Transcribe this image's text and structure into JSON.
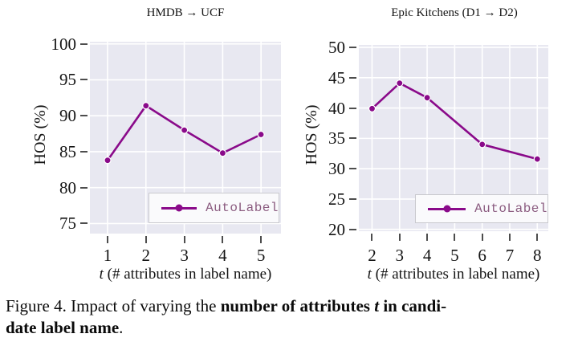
{
  "caption": {
    "line1_normal": "Figure 4. Impact of varying the ",
    "line1_bold": "number of attributes ",
    "line1_bold_italic_t": "t",
    "line1_bold_end": " in candi-",
    "line2_bold": "date label name",
    "line2_normal": "."
  },
  "colors": {
    "line": "#8a0a8a",
    "plot_bg": "#e8e8f1",
    "grid": "#ffffff",
    "marker_edge": "#ffffff",
    "legend_text": "#8b5c80",
    "legend_bg": "#fafafc",
    "legend_border": "#c9c9ce",
    "tick_mark": "#4d4d4d"
  },
  "chart_data": [
    {
      "type": "line",
      "title": "HMDB → UCF",
      "ylabel": "HOS (%)",
      "xlabel": "t (# attributes in label name)",
      "xlabel_t": "t",
      "xlabel_rest": " (# attributes in label name)",
      "legend_position": "lower right",
      "grid": true,
      "series": [
        {
          "name": "AutoLabel",
          "x": [
            1,
            2,
            3,
            4,
            5
          ],
          "y": [
            83.8,
            91.4,
            88.0,
            84.8,
            87.4
          ]
        }
      ],
      "xticks": [
        1,
        2,
        3,
        4,
        5
      ],
      "yticks": [
        75,
        80,
        85,
        90,
        95,
        100
      ],
      "xlim": [
        0.54,
        5.52
      ],
      "ylim": [
        73.6,
        100.3
      ]
    },
    {
      "type": "line",
      "title": "Epic Kitchens (D1 → D2)",
      "ylabel": "HOS (%)",
      "xlabel": "t (# attributes in label name)",
      "xlabel_t": "t",
      "xlabel_rest": " (# attributes in label name)",
      "legend_position": "lower right",
      "grid": true,
      "series": [
        {
          "name": "AutoLabel",
          "x": [
            2,
            3,
            4,
            6,
            8
          ],
          "y": [
            39.9,
            44.1,
            41.7,
            34.0,
            31.6
          ]
        }
      ],
      "xticks": [
        2,
        3,
        4,
        5,
        6,
        7,
        8
      ],
      "yticks": [
        20,
        25,
        30,
        35,
        40,
        45,
        50
      ],
      "xlim": [
        1.52,
        8.4
      ],
      "ylim": [
        19.7,
        50.4
      ]
    }
  ]
}
